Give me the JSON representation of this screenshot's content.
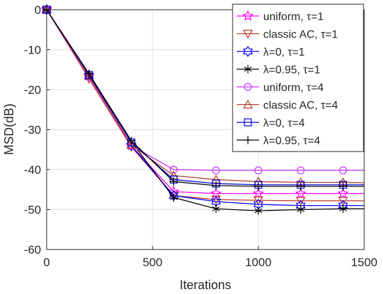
{
  "chart_data": {
    "type": "line",
    "title": "",
    "xlabel": "Iterations",
    "ylabel": "MSD(dB)",
    "xlim": [
      0,
      1500
    ],
    "ylim": [
      -60,
      0
    ],
    "xticks": [
      0,
      500,
      1000,
      1500
    ],
    "yticks": [
      0,
      -10,
      -20,
      -30,
      -40,
      -50,
      -60
    ],
    "grid": true,
    "legend_position": "top-right",
    "x": [
      0,
      200,
      400,
      600,
      800,
      1000,
      1200,
      1400,
      1500
    ],
    "series": [
      {
        "name": "uniform, τ=1",
        "color": "#ff00ff",
        "marker": "star",
        "values": [
          0,
          -16.5,
          -34.0,
          -45.5,
          -46.0,
          -46.0,
          -46.0,
          -46.0,
          -46.0
        ]
      },
      {
        "name": "classic AC, τ=1",
        "color": "#c0392b",
        "marker": "triangle-down",
        "values": [
          0,
          -17.3,
          -34.3,
          -46.5,
          -47.5,
          -47.7,
          -47.8,
          -47.8,
          -47.8
        ]
      },
      {
        "name": "λ=0, τ=1",
        "color": "#0000ff",
        "marker": "hexagram",
        "values": [
          0,
          -16.5,
          -34.0,
          -46.5,
          -48.0,
          -48.7,
          -49.0,
          -49.0,
          -49.0
        ]
      },
      {
        "name": "λ=0.95, τ=1",
        "color": "#000000",
        "marker": "asterisk",
        "values": [
          0,
          -16.2,
          -33.0,
          -47.0,
          -49.8,
          -50.3,
          -50.0,
          -49.8,
          -49.8
        ]
      },
      {
        "name": "uniform, τ=4",
        "color": "#cc33ff",
        "marker": "circle",
        "values": [
          0,
          -16.8,
          -34.0,
          -40.0,
          -40.2,
          -40.2,
          -40.2,
          -40.2,
          -40.2
        ]
      },
      {
        "name": "classic AC, τ=4",
        "color": "#b03a2e",
        "marker": "triangle-up",
        "values": [
          0,
          -16.6,
          -33.8,
          -41.5,
          -42.5,
          -43.0,
          -43.2,
          -43.2,
          -43.3
        ]
      },
      {
        "name": "λ=0, τ=4",
        "color": "#0000cc",
        "marker": "square",
        "values": [
          0,
          -16.3,
          -33.2,
          -42.5,
          -43.5,
          -43.8,
          -43.8,
          -43.8,
          -43.8
        ]
      },
      {
        "name": "λ=0.95, τ=4",
        "color": "#000000",
        "marker": "plus",
        "values": [
          0,
          -16.0,
          -32.8,
          -43.0,
          -44.0,
          -44.2,
          -44.2,
          -44.2,
          -44.2
        ]
      }
    ]
  }
}
